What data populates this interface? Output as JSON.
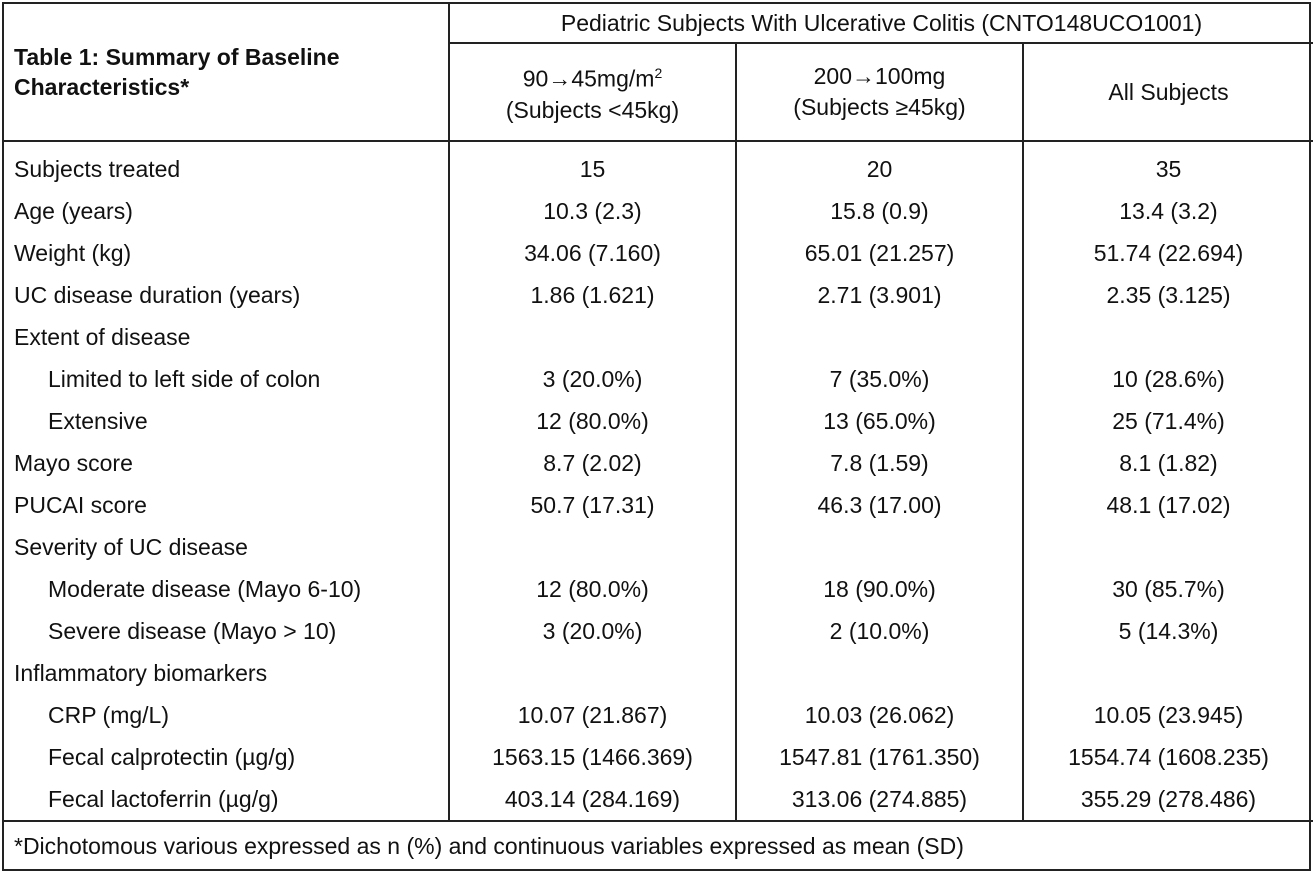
{
  "table": {
    "title": "Table 1:  Summary of Baseline Characteristics*",
    "group_header": "Pediatric Subjects With Ulcerative Colitis (CNTO148UCO1001)",
    "columns": [
      {
        "dose": "90→45mg/m",
        "dose_superscript": "2",
        "population": "(Subjects <45kg)"
      },
      {
        "dose": "200→100mg",
        "population": "(Subjects ≥45kg)"
      },
      {
        "label": "All Subjects"
      }
    ],
    "rows": [
      {
        "label": "Subjects treated",
        "values": [
          "15",
          "20",
          "35"
        ]
      },
      {
        "label": "Age (years)",
        "values": [
          "10.3 (2.3)",
          "15.8 (0.9)",
          "13.4 (3.2)"
        ]
      },
      {
        "label": "Weight (kg)",
        "values": [
          "34.06 (7.160)",
          "65.01 (21.257)",
          "51.74 (22.694)"
        ]
      },
      {
        "label": "UC disease duration (years)",
        "values": [
          "1.86 (1.621)",
          "2.71 (3.901)",
          "2.35 (3.125)"
        ]
      },
      {
        "label": "Extent of disease",
        "items": [
          {
            "label": "Limited to left side of colon",
            "values": [
              "3 (20.0%)",
              "7 (35.0%)",
              "10 (28.6%)"
            ]
          },
          {
            "label": "Extensive",
            "values": [
              "12 (80.0%)",
              "13 (65.0%)",
              "25 (71.4%)"
            ]
          }
        ]
      },
      {
        "label": "Mayo score",
        "values": [
          "8.7 (2.02)",
          "7.8 (1.59)",
          "8.1 (1.82)"
        ]
      },
      {
        "label": "PUCAI score",
        "values": [
          "50.7 (17.31)",
          "46.3 (17.00)",
          "48.1 (17.02)"
        ]
      },
      {
        "label": "Severity of UC disease",
        "items": [
          {
            "label": "Moderate disease (Mayo 6-10)",
            "values": [
              "12 (80.0%)",
              "18 (90.0%)",
              "30 (85.7%)"
            ]
          },
          {
            "label": "Severe disease (Mayo > 10)",
            "values": [
              "3 (20.0%)",
              "2 (10.0%)",
              "5 (14.3%)"
            ]
          }
        ]
      },
      {
        "label": "Inflammatory biomarkers",
        "items": [
          {
            "label": "CRP (mg/L)",
            "values": [
              "10.07 (21.867)",
              "10.03 (26.062)",
              "10.05 (23.945)"
            ]
          },
          {
            "label": "Fecal calprotectin (µg/g)",
            "values": [
              "1563.15 (1466.369)",
              "1547.81 (1761.350)",
              "1554.74 (1608.235)"
            ]
          },
          {
            "label": "Fecal lactoferrin (µg/g)",
            "values": [
              "403.14 (284.169)",
              "313.06 (274.885)",
              "355.29 (278.486)"
            ]
          }
        ]
      }
    ],
    "footnote": "*Dichotomous various expressed as n (%) and continuous variables expressed as mean (SD)"
  }
}
